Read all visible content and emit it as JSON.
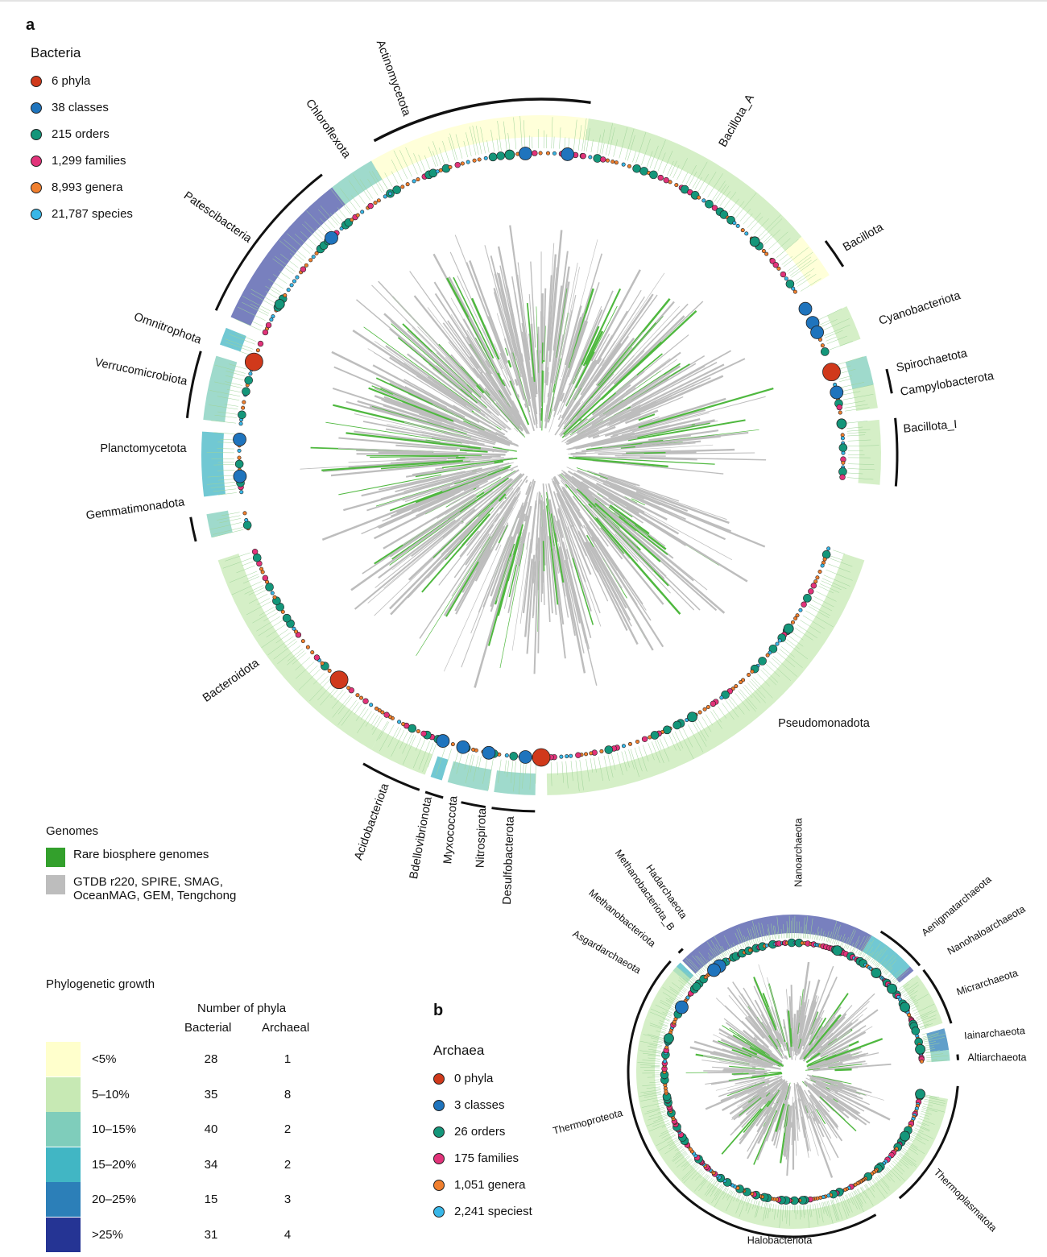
{
  "panels": {
    "a": "a",
    "b": "b"
  },
  "rank_colors": {
    "phyla": "#d0391b",
    "classes": "#1f74bd",
    "orders": "#14967a",
    "families": "#e2337a",
    "genera": "#f07f2e",
    "species": "#38b7e8"
  },
  "bacteria_legend": {
    "title": "Bacteria",
    "items": [
      {
        "rank": "phyla",
        "label": "6 phyla"
      },
      {
        "rank": "classes",
        "label": "38 classes"
      },
      {
        "rank": "orders",
        "label": "215 orders"
      },
      {
        "rank": "families",
        "label": "1,299 families"
      },
      {
        "rank": "genera",
        "label": "8,993 genera"
      },
      {
        "rank": "species",
        "label": "21,787 species"
      }
    ]
  },
  "archaea_legend": {
    "title": "Archaea",
    "items": [
      {
        "rank": "phyla",
        "label": "0 phyla"
      },
      {
        "rank": "classes",
        "label": "3 classes"
      },
      {
        "rank": "orders",
        "label": "26 orders"
      },
      {
        "rank": "families",
        "label": "175 families"
      },
      {
        "rank": "genera",
        "label": "1,051 genera"
      },
      {
        "rank": "species",
        "label": "2,241 speciest"
      }
    ]
  },
  "genomes_legend": {
    "title": "Genomes",
    "items": [
      {
        "color": "#33a02c",
        "label": "Rare biosphere genomes"
      },
      {
        "color": "#bdbdbd",
        "label": "GTDB r220, SPIRE, SMAG, OceanMAG, GEM, Tengchong"
      }
    ]
  },
  "growth_legend": {
    "title": "Phylogenetic growth",
    "header": "Number of phyla",
    "col_bacterial": "Bacterial",
    "col_archaeal": "Archaeal",
    "rows": [
      {
        "label": "<5%",
        "color": "#ffffcc",
        "bacterial": "28",
        "archaeal": "1"
      },
      {
        "label": "5–10%",
        "color": "#c7e9b4",
        "bacterial": "35",
        "archaeal": "8"
      },
      {
        "label": "10–15%",
        "color": "#7fcdbb",
        "bacterial": "40",
        "archaeal": "2"
      },
      {
        "label": "15–20%",
        "color": "#41b6c4",
        "bacterial": "34",
        "archaeal": "2"
      },
      {
        "label": "20–25%",
        "color": "#2c7fb8",
        "bacterial": "15",
        "archaeal": "3"
      },
      {
        "label": ">25%",
        "color": "#253494",
        "bacterial": "31",
        "archaeal": "4"
      }
    ]
  },
  "bacteria_phyla": [
    "Actinomycetota",
    "Chloroflexota",
    "Bacillota_A",
    "Bacillota",
    "Cyanobacteriota",
    "Spirochaetota",
    "Campylobacterota",
    "Bacillota_I",
    "Patescibacteria",
    "Omnitrophota",
    "Verrucomicrobiota",
    "Planctomycetota",
    "Gemmatimonadota",
    "Bacteroidota",
    "Pseudomonadota",
    "Acidobacteriota",
    "Bdellovibrionota",
    "Myxococcota",
    "Nitrospirota",
    "Desulfobacterota"
  ],
  "archaea_phyla": [
    "Nanoarchaeota",
    "Hadarchaeota",
    "Methanobacteriota_B",
    "Methanobacteriota",
    "Asgardarchaeota",
    "Aenigmatarchaeota",
    "Nanohaloarchaeota",
    "Micrarchaeota",
    "Iainarchaeota",
    "Altiarchaeota",
    "Thermoproteota",
    "Thermoplasmatota",
    "Halobacteriota"
  ]
}
